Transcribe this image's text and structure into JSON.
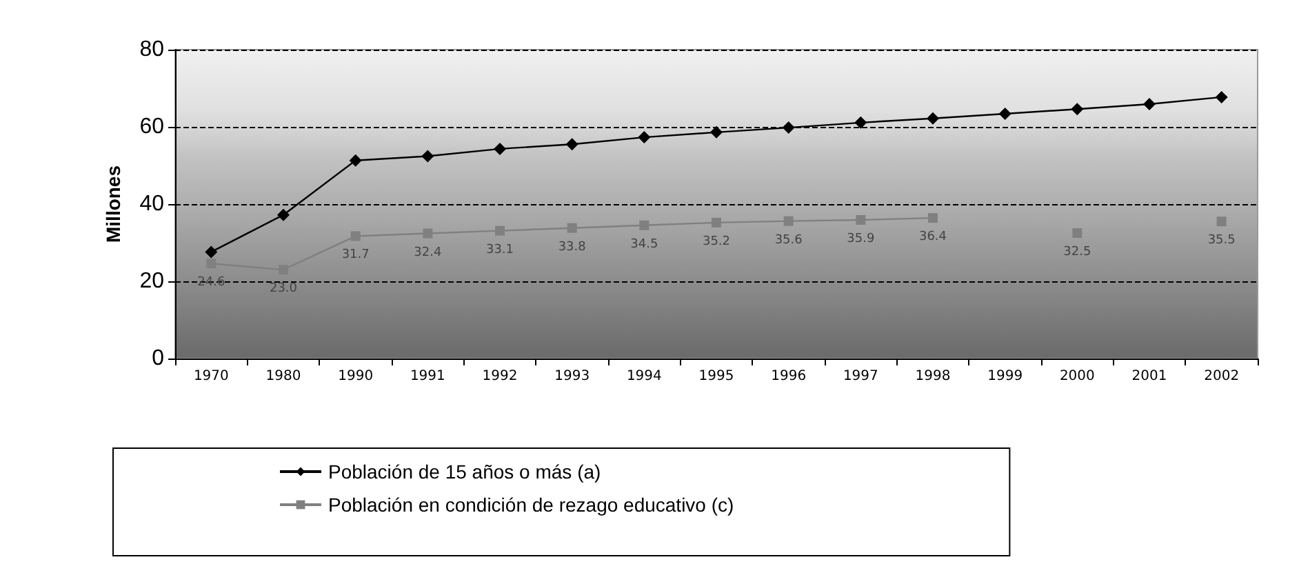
{
  "chart_data": {
    "type": "line",
    "ylabel": "Millones",
    "categories": [
      "1970",
      "1980",
      "1990",
      "1991",
      "1992",
      "1993",
      "1994",
      "1995",
      "1996",
      "1997",
      "1998",
      "1999",
      "2000",
      "2001",
      "2002"
    ],
    "series": [
      {
        "name": "Población de 15 años o más (a)",
        "color": "#000000",
        "marker": "diamond",
        "values": [
          27.6,
          37.2,
          51.3,
          52.4,
          54.3,
          55.5,
          57.3,
          58.6,
          59.8,
          61.1,
          62.2,
          63.4,
          64.6,
          65.9,
          67.7
        ]
      },
      {
        "name": "Población en condición de rezago educativo (c)",
        "color": "#808080",
        "marker": "square",
        "value_labels": [
          "24.6",
          "23.0",
          "31.7",
          "32.4",
          "33.1",
          "33.8",
          "34.5",
          "35.2",
          "35.6",
          "35.9",
          "36.4",
          null,
          "32.5",
          null,
          "35.5"
        ],
        "values": [
          24.6,
          23.0,
          31.7,
          32.4,
          33.1,
          33.8,
          34.5,
          35.2,
          35.6,
          35.9,
          36.4,
          null,
          32.5,
          null,
          35.5
        ]
      }
    ],
    "ylim": [
      0,
      80
    ],
    "yticks": [
      0,
      20,
      40,
      60,
      80
    ],
    "grid": "y",
    "legend": "bottom"
  }
}
